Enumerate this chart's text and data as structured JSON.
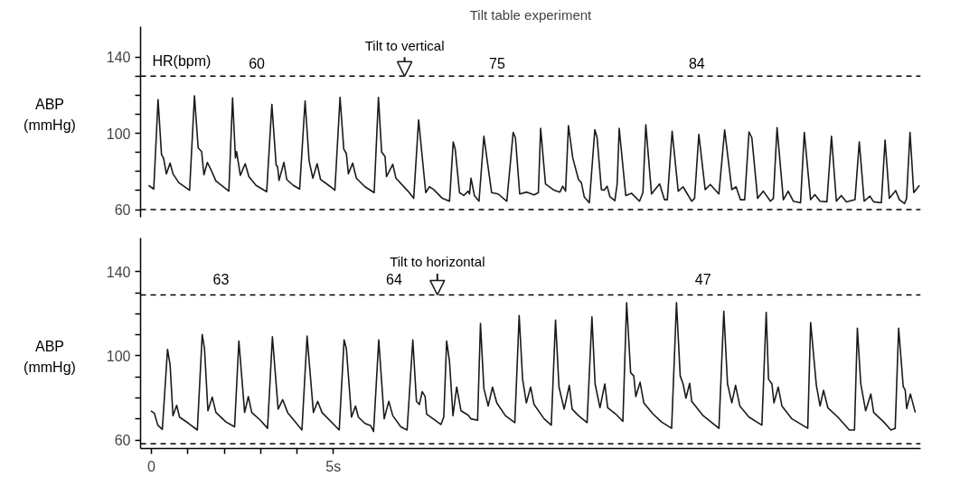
{
  "chart_data": [
    {
      "type": "line",
      "title": "Tilt table experiment",
      "ylabel": "ABP\n(mmHg)",
      "tick_labels": "y",
      "grid": false,
      "marker": "none",
      "line_style": "solid",
      "xlim": [
        -0.3,
        21.15
      ],
      "ylim": [
        56,
        156
      ],
      "yticks": [
        60,
        {
          "value": 70,
          "label": null
        },
        {
          "value": 80,
          "label": null
        },
        {
          "value": 90,
          "label": null
        },
        100,
        {
          "value": 110,
          "label": null
        },
        {
          "value": 120,
          "label": null
        },
        {
          "value": 130,
          "label": null
        },
        140
      ],
      "ref_lines": [
        {
          "axis": "y",
          "value": 130,
          "color": "#000000",
          "line_style": "dashed"
        },
        {
          "axis": "y",
          "value": 60,
          "color": "#000000",
          "line_style": "dashed"
        }
      ],
      "annotations": [
        "HR(bpm)",
        "60",
        "75",
        "84",
        {
          "text": "Tilt to vertical",
          "x": 6.96,
          "y": 130
        }
      ],
      "series": [
        {
          "color": "#1a1a1a",
          "x": [
            -0.079,
            0.063,
            0.181,
            0.276,
            0.331,
            0.41,
            0.512,
            0.591,
            0.749,
            1.048,
            1.182,
            1.284,
            1.379,
            1.442,
            1.537,
            1.631,
            1.773,
            2.128,
            2.23,
            2.309,
            2.34,
            2.443,
            2.577,
            2.679,
            2.876,
            3.168,
            3.31,
            3.428,
            3.467,
            3.507,
            3.641,
            3.719,
            3.901,
            4.074,
            4.224,
            4.334,
            4.437,
            4.555,
            4.649,
            4.925,
            5.043,
            5.185,
            5.288,
            5.359,
            5.414,
            5.532,
            5.634,
            5.871,
            6.123,
            6.241,
            6.328,
            6.422,
            6.462,
            6.635,
            6.722,
            7.053,
            7.21,
            7.345,
            7.541,
            7.643,
            7.761,
            7.998,
            8.195,
            8.297,
            8.352,
            8.47,
            8.588,
            8.707,
            8.746,
            8.785,
            8.88,
            9.006,
            9.14,
            9.353,
            9.534,
            9.771,
            9.945,
            10.007,
            10.125,
            10.322,
            10.519,
            10.638,
            10.7,
            10.834,
            11.071,
            11.229,
            11.308,
            11.386,
            11.465,
            11.584,
            11.741,
            11.82,
            11.899,
            12.04,
            12.19,
            12.253,
            12.371,
            12.45,
            12.529,
            12.607,
            12.741,
            12.805,
            12.86,
            13.041,
            13.198,
            13.419,
            13.513,
            13.592,
            13.749,
            13.971,
            14.105,
            14.184,
            14.316,
            14.483,
            14.617,
            14.735,
            14.854,
            14.933,
            15.05,
            15.224,
            15.366,
            15.602,
            15.76,
            15.957,
            16.075,
            16.193,
            16.311,
            16.43,
            16.508,
            16.666,
            16.823,
            17.02,
            17.099,
            17.201,
            17.374,
            17.508,
            17.65,
            17.847,
            17.95,
            18.123,
            18.241,
            18.383,
            18.572,
            18.698,
            18.832,
            18.966,
            19.108,
            19.344,
            19.462,
            19.596,
            19.754,
            19.856,
            20.069,
            20.171,
            20.289,
            20.463,
            20.565,
            20.707,
            20.762,
            20.857,
            20.959,
            21.116
          ],
          "values": [
            72.7,
            70.8,
            117.7,
            88.9,
            87.1,
            78.8,
            84.4,
            78.8,
            74.2,
            70.2,
            119.7,
            92.4,
            90.5,
            78.3,
            84.8,
            81.1,
            75.0,
            69.7,
            118.6,
            87.1,
            90.5,
            78.0,
            84.1,
            77.3,
            72.7,
            69.4,
            115.2,
            83.3,
            82.6,
            75.3,
            84.8,
            75.8,
            72.7,
            70.8,
            117.0,
            85.6,
            76.5,
            84.1,
            75.8,
            72.0,
            70.2,
            118.9,
            91.7,
            89.4,
            78.8,
            84.4,
            76.5,
            72.0,
            68.9,
            118.9,
            90.2,
            87.9,
            77.3,
            83.8,
            76.5,
            69.7,
            65.9,
            107.1,
            68.9,
            72.0,
            70.5,
            65.9,
            64.4,
            95.5,
            91.7,
            68.9,
            67.4,
            69.7,
            68.2,
            76.5,
            67.4,
            64.4,
            98.5,
            68.9,
            68.2,
            64.4,
            100.5,
            97.7,
            68.2,
            69.2,
            67.7,
            68.9,
            102.6,
            73.5,
            70.2,
            69.2,
            72.3,
            69.7,
            104.1,
            87.1,
            75.8,
            74.2,
            66.7,
            63.6,
            102.0,
            97.7,
            70.5,
            70.2,
            72.3,
            66.7,
            64.7,
            73.5,
            102.7,
            67.4,
            68.6,
            64.4,
            68.9,
            104.5,
            68.2,
            73.5,
            65.2,
            65.2,
            101.1,
            69.7,
            72.0,
            68.2,
            64.4,
            65.9,
            99.5,
            70.5,
            73.2,
            68.2,
            101.8,
            70.5,
            72.0,
            65.2,
            65.2,
            100.8,
            97.7,
            65.9,
            69.7,
            64.4,
            65.9,
            103.0,
            65.2,
            69.7,
            64.4,
            63.6,
            100.5,
            65.2,
            67.9,
            64.4,
            64.1,
            98.5,
            64.4,
            67.4,
            64.1,
            65.2,
            95.5,
            64.4,
            67.1,
            64.1,
            63.6,
            96.5,
            65.9,
            70.0,
            65.2,
            63.2,
            65.9,
            100.5,
            68.9,
            72.7
          ]
        }
      ]
    },
    {
      "type": "line",
      "ylabel": "ABP\n(mmHg)",
      "grid": false,
      "marker": "none",
      "line_style": "solid",
      "xlim": [
        -0.3,
        21.15
      ],
      "ylim": [
        56,
        156
      ],
      "xticks": [
        0,
        {
          "value": 1,
          "label": null
        },
        {
          "value": 2,
          "label": null
        },
        {
          "value": 3,
          "label": null
        },
        {
          "value": 4,
          "label": null
        },
        {
          "value": 5,
          "label": "5s"
        }
      ],
      "yticks": [
        60,
        {
          "value": 70,
          "label": null
        },
        {
          "value": 80,
          "label": null
        },
        {
          "value": 90,
          "label": null
        },
        100,
        {
          "value": 110,
          "label": null
        },
        {
          "value": 120,
          "label": null
        },
        {
          "value": 130,
          "label": null
        },
        140
      ],
      "ref_lines": [
        {
          "axis": "y",
          "value": 129,
          "color": "#000000",
          "line_style": "dashed"
        },
        {
          "axis": "y",
          "value": 58.3,
          "color": "#000000",
          "line_style": "dashed"
        }
      ],
      "annotations": [
        "63",
        "64",
        "47",
        {
          "text": "Tilt to horizontal",
          "x": 7.86,
          "y": 129
        }
      ],
      "series": [
        {
          "color": "#1a1a1a",
          "x": [
            -0.016,
            0.079,
            0.173,
            0.299,
            0.441,
            0.512,
            0.591,
            0.693,
            0.772,
            1.024,
            1.261,
            1.395,
            1.458,
            1.552,
            1.671,
            1.773,
            2.049,
            2.285,
            2.403,
            2.561,
            2.663,
            2.758,
            2.994,
            3.192,
            3.325,
            3.483,
            3.609,
            3.743,
            4.137,
            4.279,
            4.452,
            4.571,
            4.689,
            5.162,
            5.296,
            5.359,
            5.5,
            5.611,
            5.689,
            5.871,
            6.028,
            6.107,
            6.249,
            6.399,
            6.525,
            6.635,
            6.856,
            7.029,
            7.186,
            7.286,
            7.366,
            7.444,
            7.524,
            7.564,
            7.958,
            8.037,
            8.116,
            8.195,
            8.29,
            8.392,
            8.511,
            8.707,
            8.786,
            8.967,
            9.046,
            9.14,
            9.259,
            9.377,
            9.495,
            9.731,
            9.991,
            10.11,
            10.204,
            10.307,
            10.425,
            10.52,
            10.796,
            10.993,
            11.11,
            11.205,
            11.347,
            11.489,
            11.567,
            11.741,
            11.977,
            12.111,
            12.198,
            12.332,
            12.465,
            12.544,
            12.765,
            12.962,
            13.065,
            13.175,
            13.261,
            13.317,
            13.435,
            13.537,
            13.789,
            14.026,
            14.302,
            14.436,
            14.538,
            14.617,
            14.696,
            14.799,
            14.854,
            15.169,
            15.603,
            15.737,
            15.839,
            15.957,
            16.06,
            16.178,
            16.43,
            16.784,
            16.903,
            16.966,
            17.06,
            17.115,
            17.233,
            17.335,
            17.611,
            18.045,
            18.124,
            18.282,
            18.384,
            18.479,
            18.597,
            18.873,
            19.188,
            19.33,
            19.409,
            19.503,
            19.637,
            19.779,
            19.858,
            20.134,
            20.331,
            20.449,
            20.544,
            20.67,
            20.725,
            20.765,
            20.867,
            21.001
          ],
          "values": [
            73.9,
            72.8,
            67.1,
            65.1,
            103.1,
            95.8,
            71.6,
            76.5,
            70.9,
            67.9,
            64.8,
            110.2,
            103.4,
            73.9,
            80.4,
            73.1,
            68.6,
            66.3,
            107.1,
            73.1,
            80.7,
            73.1,
            69.4,
            65.6,
            109.1,
            74.7,
            79.2,
            73.1,
            64.8,
            109.4,
            73.1,
            78.4,
            73.1,
            64.8,
            107.6,
            103.4,
            70.9,
            76.2,
            70.9,
            67.9,
            66.8,
            64.1,
            107.6,
            70.1,
            78.4,
            71.6,
            66.3,
            64.8,
            107.6,
            78.4,
            76.9,
            83.0,
            80.7,
            72.4,
            67.4,
            70.9,
            107.1,
            97.3,
            71.6,
            85.2,
            73.9,
            71.9,
            70.1,
            69.4,
            115.4,
            84.5,
            76.2,
            85.2,
            77.7,
            71.6,
            68.3,
            119.2,
            89.0,
            77.7,
            85.2,
            76.9,
            70.1,
            67.1,
            117.0,
            85.2,
            74.7,
            86.0,
            74.7,
            71.6,
            68.3,
            118.5,
            86.7,
            75.4,
            86.7,
            75.4,
            72.4,
            68.9,
            125.3,
            92.0,
            90.5,
            80.7,
            87.5,
            77.7,
            72.4,
            68.6,
            65.6,
            125.3,
            90.5,
            86.7,
            79.9,
            87.0,
            78.4,
            71.6,
            65.6,
            121.2,
            86.7,
            77.7,
            86.0,
            76.2,
            70.9,
            67.1,
            120.7,
            89.0,
            86.7,
            77.7,
            85.2,
            76.2,
            70.1,
            65.6,
            115.9,
            86.0,
            76.2,
            83.7,
            75.4,
            70.9,
            64.8,
            64.8,
            113.2,
            86.7,
            73.9,
            81.9,
            73.1,
            68.6,
            64.8,
            65.6,
            113.2,
            85.5,
            83.7,
            75.0,
            81.9,
            73.1
          ]
        }
      ]
    }
  ]
}
